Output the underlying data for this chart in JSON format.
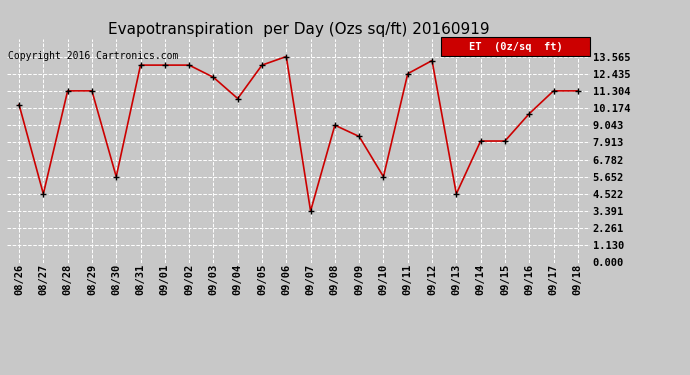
{
  "title": "Evapotranspiration  per Day (Ozs sq/ft) 20160919",
  "copyright": "Copyright 2016 Cartronics.com",
  "legend_label": "ET  (0z/sq  ft)",
  "dates": [
    "08/26",
    "08/27",
    "08/28",
    "08/29",
    "08/30",
    "08/31",
    "09/01",
    "09/02",
    "09/03",
    "09/04",
    "09/05",
    "09/06",
    "09/07",
    "09/08",
    "09/09",
    "09/10",
    "09/11",
    "09/12",
    "09/13",
    "09/14",
    "09/15",
    "09/16",
    "09/17",
    "09/18"
  ],
  "values": [
    10.4,
    4.52,
    11.304,
    11.304,
    5.652,
    13.0,
    13.0,
    13.0,
    12.2,
    10.8,
    13.0,
    13.565,
    3.391,
    9.043,
    8.3,
    5.652,
    12.435,
    13.3,
    4.522,
    8.0,
    8.0,
    9.8,
    11.304,
    11.304
  ],
  "ylim": [
    0.0,
    14.695
  ],
  "yticks": [
    0.0,
    1.13,
    2.261,
    3.391,
    4.522,
    5.652,
    6.782,
    7.913,
    9.043,
    10.174,
    11.304,
    12.435,
    13.565
  ],
  "line_color": "#cc0000",
  "marker_color": "#000000",
  "bg_color": "#c8c8c8",
  "plot_bg_color": "#c8c8c8",
  "grid_color": "#ffffff",
  "title_fontsize": 11,
  "copyright_fontsize": 7,
  "tick_fontsize": 7.5,
  "legend_bg": "#cc0000",
  "legend_text_color": "#ffffff",
  "legend_fontsize": 7.5
}
